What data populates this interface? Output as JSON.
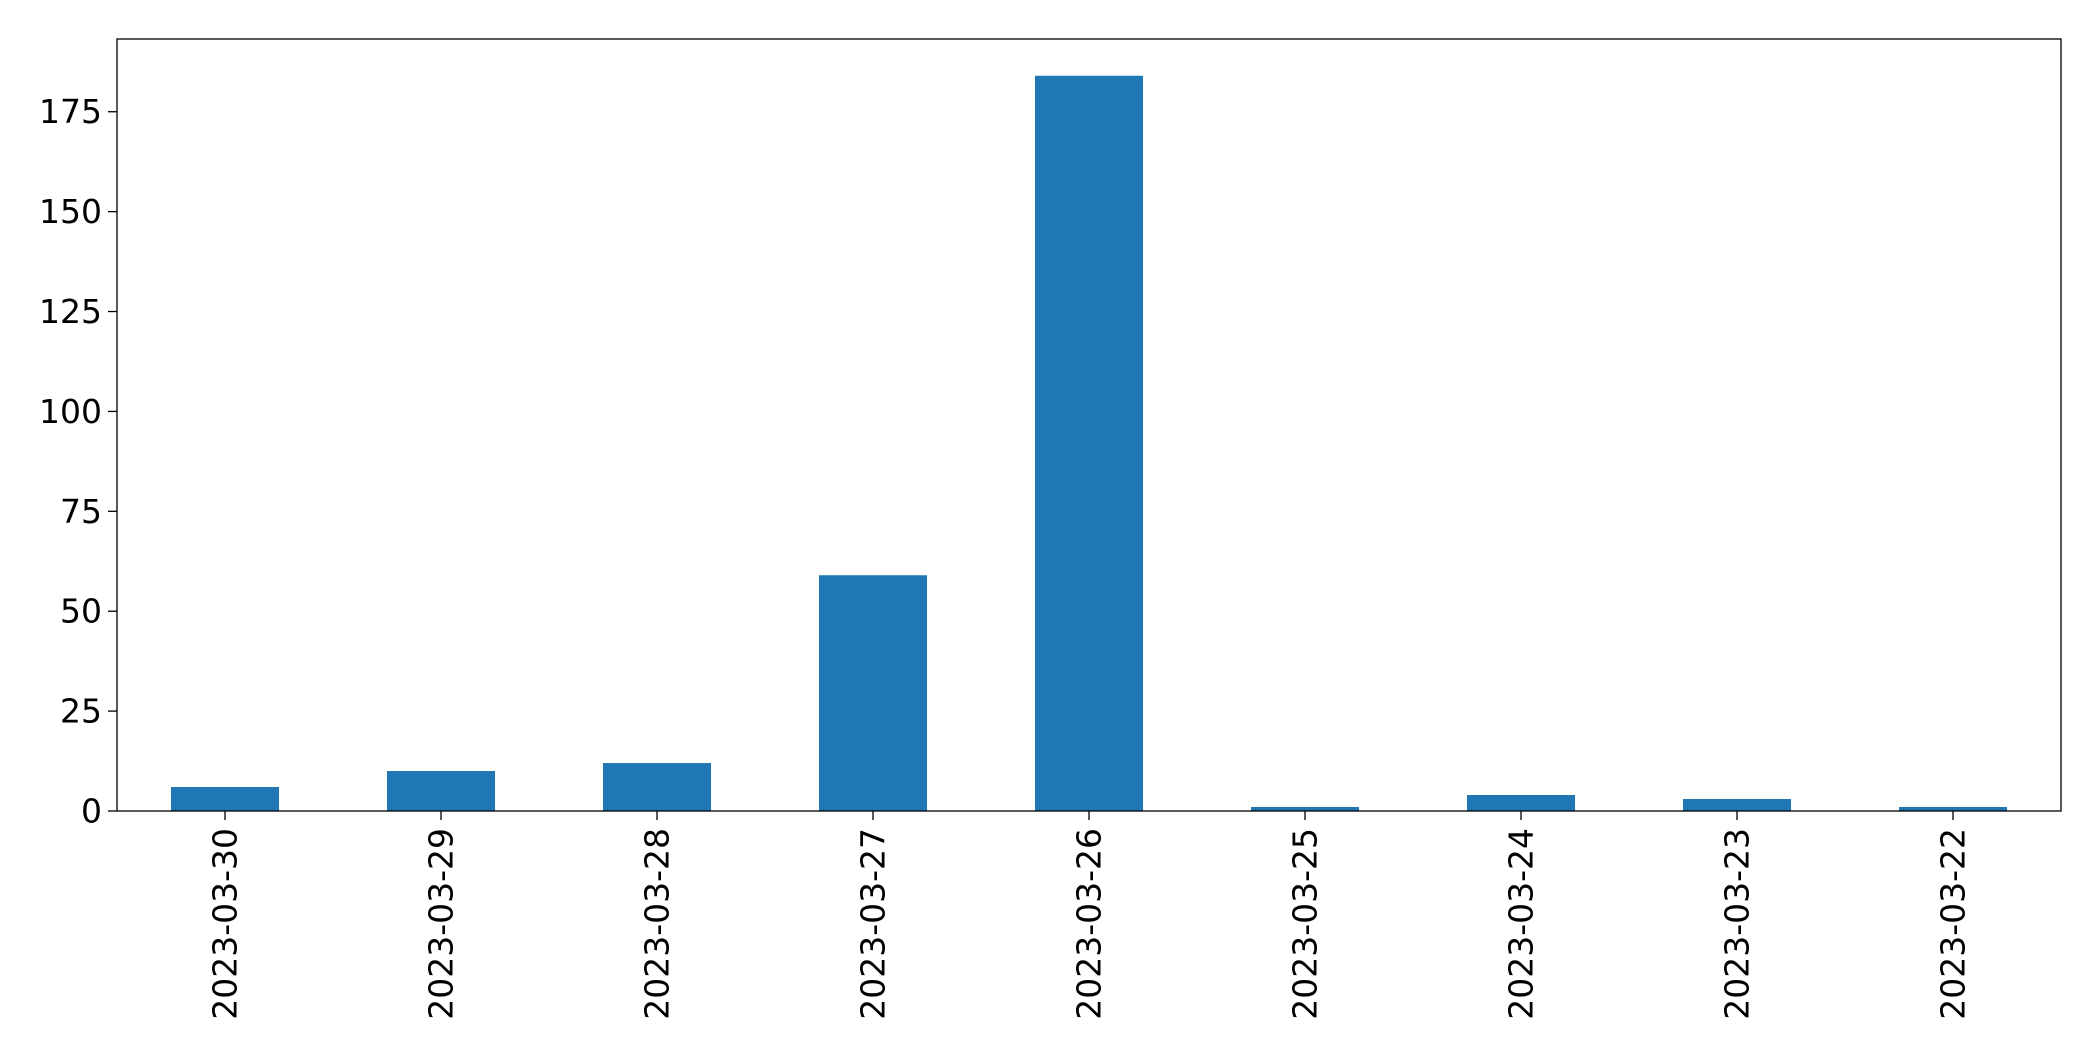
{
  "chart_data": {
    "type": "bar",
    "title": "",
    "xlabel": "",
    "ylabel": "",
    "categories": [
      "2023-03-30",
      "2023-03-29",
      "2023-03-28",
      "2023-03-27",
      "2023-03-26",
      "2023-03-25",
      "2023-03-24",
      "2023-03-23",
      "2023-03-22"
    ],
    "values": [
      6,
      10,
      12,
      59,
      184,
      1,
      4,
      3,
      1
    ],
    "ylim": [
      0,
      193.2
    ],
    "yticks": [
      0,
      25,
      50,
      75,
      100,
      125,
      150,
      175
    ],
    "x_tick_rotation": 90,
    "bar_color": "#1f77b4",
    "grid": false,
    "legend": "none"
  }
}
